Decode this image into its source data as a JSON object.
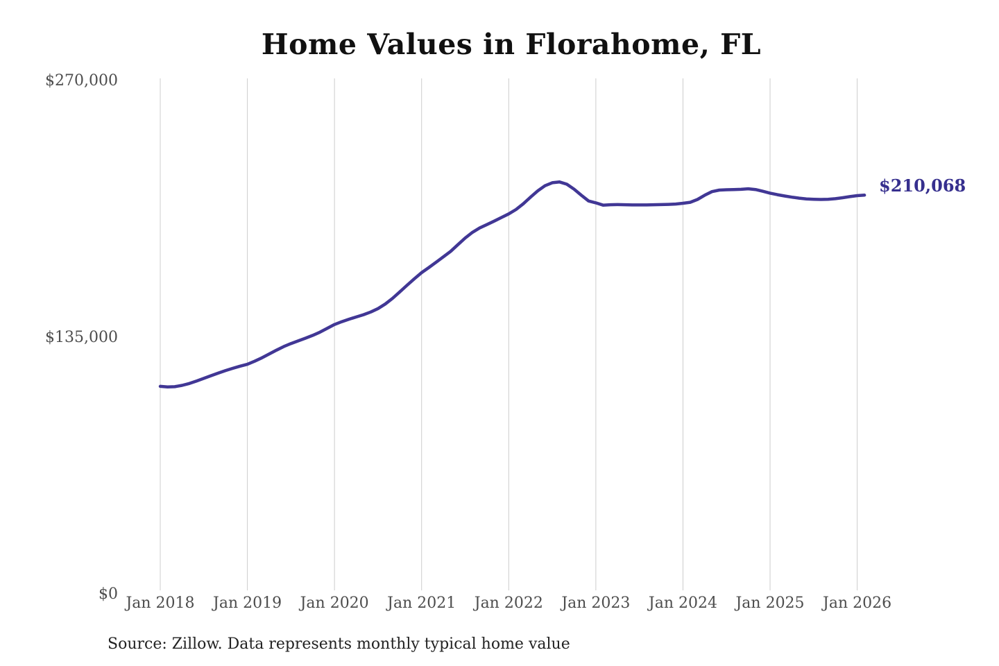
{
  "page_title": "Home Values in Florahome, FL",
  "chart_data": {
    "type": "line",
    "title": "Home Values in Florahome, FL",
    "source_note": "Source: Zillow. Data represents monthly typical home value",
    "end_value_label": "$210,068",
    "x_start_month": "Jan 2018",
    "x_end_month": "Feb 2026",
    "months_per_x_tick": 12,
    "x_tick_labels": [
      "Jan 2018",
      "Jan 2019",
      "Jan 2020",
      "Jan 2021",
      "Jan 2022",
      "Jan 2023",
      "Jan 2024",
      "Jan 2025",
      "Jan 2026"
    ],
    "y_ticks": [
      {
        "value": 270000,
        "label": "$270,000"
      },
      {
        "value": 135000,
        "label": "$135,000"
      },
      {
        "value": 0,
        "label": "$0"
      }
    ],
    "ylim": [
      0,
      270000
    ],
    "grid": "vertical-only",
    "legend": "none",
    "series": [
      {
        "name": "Monthly typical home value",
        "unit": "USD",
        "values": [
          109500,
          109200,
          109300,
          110000,
          111000,
          112300,
          113700,
          115100,
          116500,
          117800,
          119000,
          120100,
          121100,
          122700,
          124500,
          126500,
          128500,
          130400,
          132000,
          133400,
          134800,
          136300,
          138000,
          140000,
          142000,
          143500,
          144800,
          146000,
          147200,
          148600,
          150400,
          152800,
          155800,
          159200,
          162700,
          166100,
          169300,
          172000,
          174800,
          177600,
          180500,
          184000,
          187500,
          190500,
          192800,
          194600,
          196400,
          198300,
          200200,
          202500,
          205500,
          209000,
          212300,
          215000,
          216600,
          217000,
          215800,
          213200,
          210000,
          207000,
          206000,
          204800,
          205000,
          205100,
          205000,
          204900,
          204900,
          204900,
          205000,
          205100,
          205200,
          205400,
          205800,
          206300,
          207800,
          210000,
          211900,
          212700,
          212900,
          213000,
          213100,
          213400,
          213000,
          212100,
          211100,
          210300,
          209600,
          209000,
          208500,
          208100,
          207900,
          207800,
          207900,
          208200,
          208700,
          209300,
          209800,
          210068
        ]
      }
    ],
    "colors": {
      "line": "#413795",
      "end_label": "#362f8e",
      "grid": "#cccccc",
      "axis_text": "#4d4d4d",
      "title_text": "#111111",
      "source_text": "#222222"
    }
  }
}
